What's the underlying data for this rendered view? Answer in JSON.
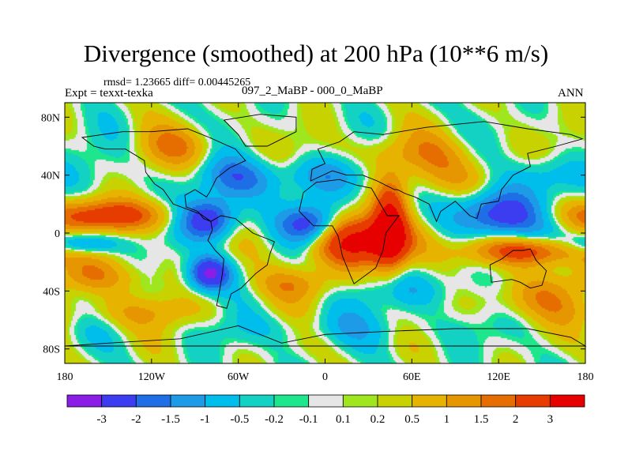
{
  "header": {
    "title": "Divergence (smoothed) at 200 hPa (10**6 m/s)",
    "stats": "rmsd= 1.23665 diff= 0.00445265",
    "expt": "Expt = texxt-texka",
    "case": "097_2_MaBP - 000_0_MaBP",
    "season": "ANN"
  },
  "chart_data": {
    "type": "heatmap",
    "title": "Divergence (smoothed) at 200 hPa (10**6 m/s)",
    "projection": "cylindrical-equidistant",
    "xlim": [
      -180,
      180
    ],
    "ylim": [
      -90,
      90
    ],
    "x_ticks": [
      {
        "value": -180,
        "label": "180"
      },
      {
        "value": -120,
        "label": "120W"
      },
      {
        "value": -60,
        "label": "60W"
      },
      {
        "value": 0,
        "label": "0"
      },
      {
        "value": 60,
        "label": "60E"
      },
      {
        "value": 120,
        "label": "120E"
      },
      {
        "value": 180,
        "label": "180"
      }
    ],
    "y_ticks": [
      {
        "value": 80,
        "label": "80N"
      },
      {
        "value": 40,
        "label": "40N"
      },
      {
        "value": 0,
        "label": "0"
      },
      {
        "value": -40,
        "label": "40S"
      },
      {
        "value": -80,
        "label": "80S"
      }
    ],
    "colorbar": {
      "colors": [
        "#8a1ee6",
        "#3c3cf0",
        "#1e6ee6",
        "#1e9be6",
        "#00beeb",
        "#14d2c3",
        "#1ee68c",
        "#e6e6e6",
        "#a0e61e",
        "#c8d200",
        "#e6b400",
        "#e69600",
        "#e66e00",
        "#e63c00",
        "#e60000"
      ],
      "levels": [
        "-3",
        "-2",
        "-1.5",
        "-1",
        "-0.5",
        "-0.2",
        "-0.1",
        "0.1",
        "0.2",
        "0.5",
        "1",
        "1.5",
        "2",
        "3"
      ]
    },
    "features": [
      {
        "lon": 25,
        "lat": -5,
        "amp": 3.2,
        "slon": 30,
        "slat": 12
      },
      {
        "lon": 45,
        "lat": 5,
        "amp": 3.0,
        "slon": 8,
        "slat": 22
      },
      {
        "lon": -150,
        "lat": 12,
        "amp": 2.4,
        "slon": 35,
        "slat": 8
      },
      {
        "lon": 150,
        "lat": -12,
        "amp": 2.6,
        "slon": 35,
        "slat": 7
      },
      {
        "lon": -80,
        "lat": 10,
        "amp": -3.2,
        "slon": 14,
        "slat": 10
      },
      {
        "lon": -80,
        "lat": -28,
        "amp": -3.2,
        "slon": 10,
        "slat": 8
      },
      {
        "lon": -10,
        "lat": 5,
        "amp": -3.0,
        "slon": 14,
        "slat": 10
      },
      {
        "lon": 120,
        "lat": 12,
        "amp": -3.0,
        "slon": 20,
        "slat": 12
      },
      {
        "lon": -170,
        "lat": -8,
        "amp": -2.6,
        "slon": 18,
        "slat": 6
      },
      {
        "lon": -160,
        "lat": -30,
        "amp": 1.2,
        "slon": 25,
        "slat": 8
      },
      {
        "lon": -60,
        "lat": 38,
        "amp": -1.5,
        "slon": 22,
        "slat": 10
      },
      {
        "lon": 0,
        "lat": 40,
        "amp": -1.2,
        "slon": 20,
        "slat": 10
      },
      {
        "lon": 100,
        "lat": 38,
        "amp": 0.9,
        "slon": 25,
        "slat": 10
      },
      {
        "lon": -100,
        "lat": 60,
        "amp": 1.2,
        "slon": 20,
        "slat": 10
      },
      {
        "lon": -20,
        "lat": -35,
        "amp": 1.2,
        "slon": 20,
        "slat": 8
      },
      {
        "lon": 60,
        "lat": -40,
        "amp": -1.0,
        "slon": 25,
        "slat": 10
      },
      {
        "lon": 140,
        "lat": -45,
        "amp": 1.0,
        "slon": 30,
        "slat": 10
      },
      {
        "lon": -130,
        "lat": -55,
        "amp": 0.8,
        "slon": 40,
        "slat": 8
      },
      {
        "lon": 60,
        "lat": 55,
        "amp": 0.9,
        "slon": 40,
        "slat": 10
      },
      {
        "lon": 150,
        "lat": 40,
        "amp": -1.2,
        "slon": 20,
        "slat": 10
      },
      {
        "lon": 0,
        "lat": -65,
        "amp": -0.5,
        "slon": 60,
        "slat": 8
      }
    ]
  }
}
